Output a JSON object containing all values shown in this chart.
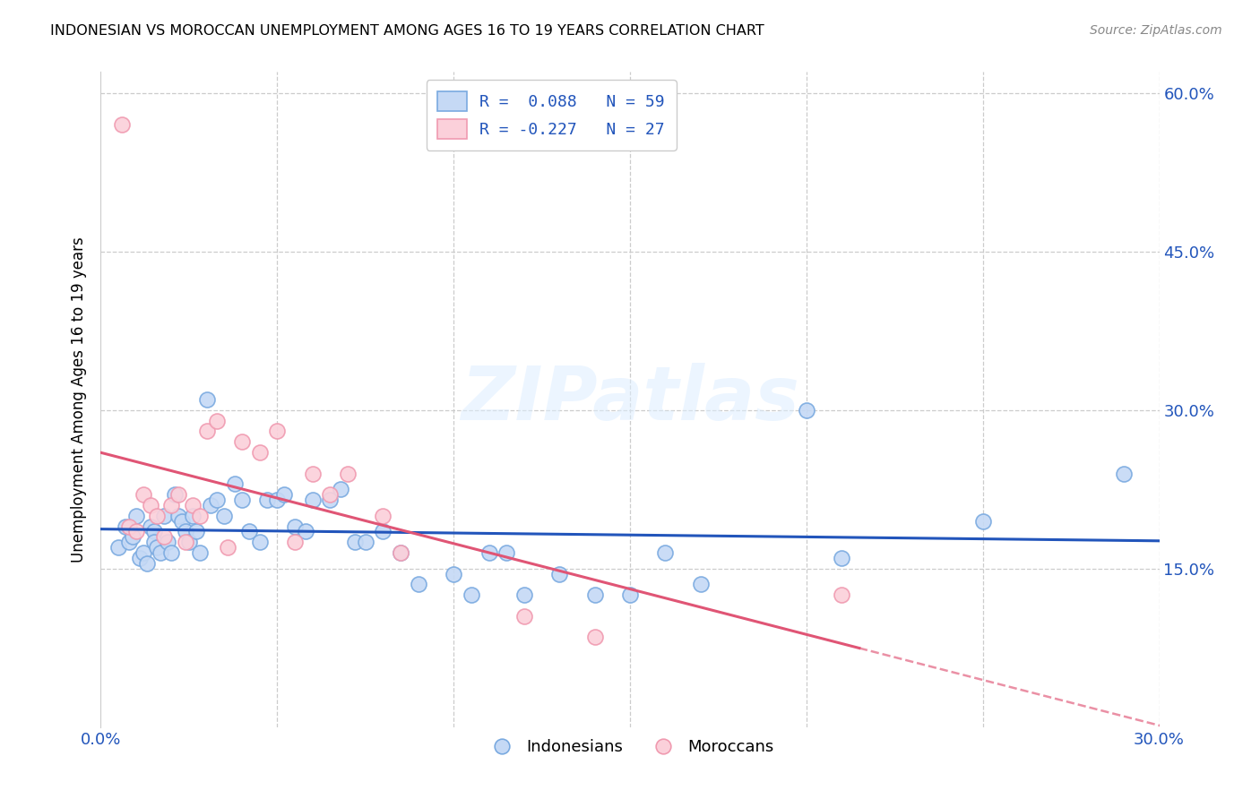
{
  "title": "INDONESIAN VS MOROCCAN UNEMPLOYMENT AMONG AGES 16 TO 19 YEARS CORRELATION CHART",
  "source": "Source: ZipAtlas.com",
  "ylabel_label": "Unemployment Among Ages 16 to 19 years",
  "xlim": [
    0.0,
    0.3
  ],
  "ylim": [
    0.0,
    0.62
  ],
  "indonesian_fill": "#c5d9f5",
  "indonesian_edge": "#7aaae0",
  "moroccan_fill": "#fbd0da",
  "moroccan_edge": "#f09ab0",
  "indonesian_line_color": "#2255bb",
  "moroccan_line_color": "#e05575",
  "legend_text1": "R =  0.088   N = 59",
  "legend_text2": "R = -0.227   N = 27",
  "legend_color": "#2255bb",
  "watermark_text": "ZIPatlas",
  "indonesian_x": [
    0.005,
    0.007,
    0.008,
    0.009,
    0.01,
    0.011,
    0.012,
    0.013,
    0.014,
    0.015,
    0.015,
    0.016,
    0.017,
    0.018,
    0.019,
    0.02,
    0.021,
    0.022,
    0.023,
    0.024,
    0.025,
    0.026,
    0.027,
    0.028,
    0.03,
    0.031,
    0.033,
    0.035,
    0.038,
    0.04,
    0.042,
    0.045,
    0.047,
    0.05,
    0.052,
    0.055,
    0.058,
    0.06,
    0.065,
    0.068,
    0.072,
    0.075,
    0.08,
    0.085,
    0.09,
    0.1,
    0.105,
    0.11,
    0.115,
    0.12,
    0.13,
    0.14,
    0.15,
    0.16,
    0.17,
    0.2,
    0.21,
    0.25,
    0.29
  ],
  "indonesian_y": [
    0.17,
    0.19,
    0.175,
    0.18,
    0.2,
    0.16,
    0.165,
    0.155,
    0.19,
    0.185,
    0.175,
    0.17,
    0.165,
    0.2,
    0.175,
    0.165,
    0.22,
    0.2,
    0.195,
    0.185,
    0.175,
    0.2,
    0.185,
    0.165,
    0.31,
    0.21,
    0.215,
    0.2,
    0.23,
    0.215,
    0.185,
    0.175,
    0.215,
    0.215,
    0.22,
    0.19,
    0.185,
    0.215,
    0.215,
    0.225,
    0.175,
    0.175,
    0.185,
    0.165,
    0.135,
    0.145,
    0.125,
    0.165,
    0.165,
    0.125,
    0.145,
    0.125,
    0.125,
    0.165,
    0.135,
    0.3,
    0.16,
    0.195,
    0.24
  ],
  "moroccan_x": [
    0.006,
    0.008,
    0.01,
    0.012,
    0.014,
    0.016,
    0.018,
    0.02,
    0.022,
    0.024,
    0.026,
    0.028,
    0.03,
    0.033,
    0.036,
    0.04,
    0.045,
    0.05,
    0.055,
    0.06,
    0.065,
    0.07,
    0.08,
    0.085,
    0.12,
    0.14,
    0.21
  ],
  "moroccan_y": [
    0.57,
    0.19,
    0.185,
    0.22,
    0.21,
    0.2,
    0.18,
    0.21,
    0.22,
    0.175,
    0.21,
    0.2,
    0.28,
    0.29,
    0.17,
    0.27,
    0.26,
    0.28,
    0.175,
    0.24,
    0.22,
    0.24,
    0.2,
    0.165,
    0.105,
    0.085,
    0.125
  ]
}
